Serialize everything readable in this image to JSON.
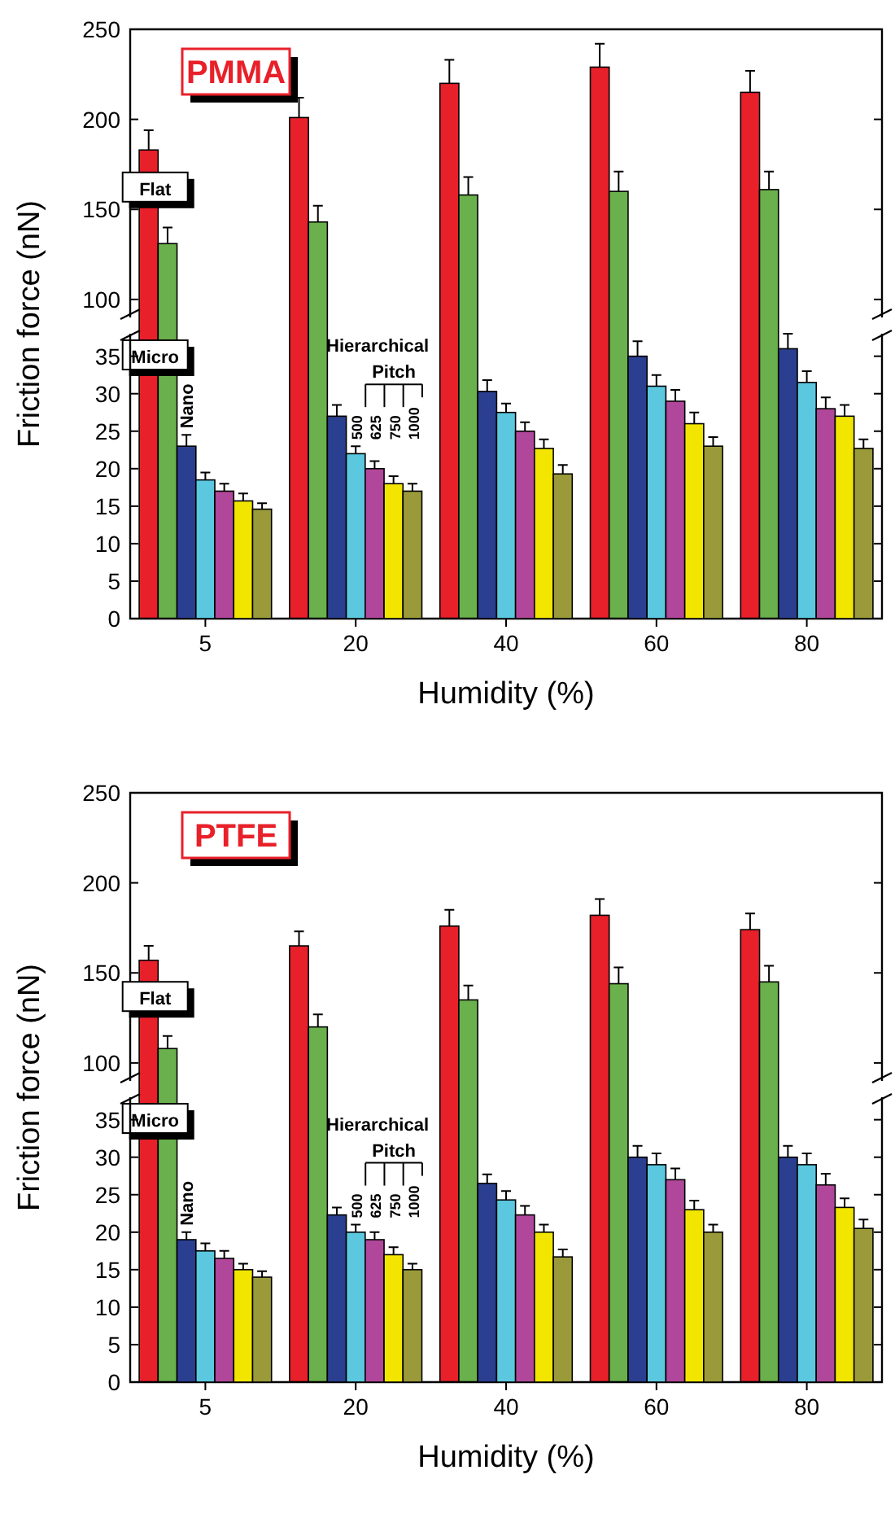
{
  "chart_data": [
    {
      "type": "bar",
      "title": "PMMA",
      "categories": [
        "5",
        "20",
        "40",
        "60",
        "80"
      ],
      "ylim": [
        90,
        250
      ],
      "yticks": [
        100,
        150,
        200,
        250
      ],
      "tick_labels": "y",
      "series": [
        {
          "name": "Flat",
          "color": "#e8202a",
          "values": [
            183,
            201,
            220,
            229,
            215
          ],
          "errors": [
            11,
            11,
            13,
            13,
            12
          ]
        },
        {
          "name": "Micro",
          "color": "#6ab04c",
          "values": [
            131,
            143,
            158,
            160,
            161
          ],
          "errors": [
            9,
            9,
            10,
            11,
            10
          ]
        }
      ]
    },
    {
      "type": "bar",
      "xlabel": "Humidity (%)",
      "ylabel": "Friction force (nN)",
      "categories": [
        "5",
        "20",
        "40",
        "60",
        "80"
      ],
      "ylim": [
        0,
        38
      ],
      "yticks": [
        0,
        5,
        10,
        15,
        20,
        25,
        30,
        35
      ],
      "annotations": [
        "Hierarchical",
        "Pitch"
      ],
      "legend": "top left",
      "series": [
        {
          "name": "Nano",
          "color": "#2a3f8f",
          "values": [
            23,
            27,
            30.3,
            35,
            36
          ],
          "errors": [
            1.5,
            1.5,
            1.5,
            2,
            2
          ]
        },
        {
          "name": "500",
          "color": "#5bc8e0",
          "values": [
            18.5,
            22,
            27.5,
            31,
            31.5
          ],
          "errors": [
            1,
            1,
            1.2,
            1.5,
            1.5
          ]
        },
        {
          "name": "625",
          "color": "#b0479a",
          "values": [
            17,
            20,
            25,
            29,
            28
          ],
          "errors": [
            1,
            1,
            1.2,
            1.5,
            1.5
          ]
        },
        {
          "name": "750",
          "color": "#f2e600",
          "values": [
            15.7,
            18,
            22.7,
            26,
            27
          ],
          "errors": [
            1,
            1,
            1.2,
            1.5,
            1.5
          ]
        },
        {
          "name": "1000",
          "color": "#9a9a3a",
          "values": [
            14.6,
            17,
            19.3,
            23,
            22.7
          ],
          "errors": [
            0.8,
            1,
            1.2,
            1.2,
            1.2
          ]
        }
      ]
    },
    {
      "type": "bar",
      "title": "PTFE",
      "categories": [
        "5",
        "20",
        "40",
        "60",
        "80"
      ],
      "ylim": [
        90,
        250
      ],
      "yticks": [
        100,
        150,
        200,
        250
      ],
      "tick_labels": "y",
      "series": [
        {
          "name": "Flat",
          "color": "#e8202a",
          "values": [
            157,
            165,
            176,
            182,
            174
          ],
          "errors": [
            8,
            8,
            9,
            9,
            9
          ]
        },
        {
          "name": "Micro",
          "color": "#6ab04c",
          "values": [
            108,
            120,
            135,
            144,
            145
          ],
          "errors": [
            7,
            7,
            8,
            9,
            9
          ]
        }
      ]
    },
    {
      "type": "bar",
      "xlabel": "Humidity (%)",
      "ylabel": "Friction force (nN)",
      "categories": [
        "5",
        "20",
        "40",
        "60",
        "80"
      ],
      "ylim": [
        0,
        38
      ],
      "yticks": [
        0,
        5,
        10,
        15,
        20,
        25,
        30,
        35
      ],
      "annotations": [
        "Hierarchical",
        "Pitch"
      ],
      "legend": "top left",
      "series": [
        {
          "name": "Nano",
          "color": "#2a3f8f",
          "values": [
            19,
            22.3,
            26.5,
            30,
            30
          ],
          "errors": [
            1,
            1,
            1.2,
            1.5,
            1.5
          ]
        },
        {
          "name": "500",
          "color": "#5bc8e0",
          "values": [
            17.5,
            20,
            24.3,
            29,
            29
          ],
          "errors": [
            1,
            1,
            1.2,
            1.5,
            1.5
          ]
        },
        {
          "name": "625",
          "color": "#b0479a",
          "values": [
            16.5,
            19,
            22.3,
            27,
            26.3
          ],
          "errors": [
            1,
            1,
            1.2,
            1.5,
            1.5
          ]
        },
        {
          "name": "750",
          "color": "#f2e600",
          "values": [
            15,
            17,
            20,
            23,
            23.3
          ],
          "errors": [
            0.8,
            1,
            1,
            1.2,
            1.2
          ]
        },
        {
          "name": "1000",
          "color": "#9a9a3a",
          "values": [
            14,
            15,
            16.7,
            20,
            20.5
          ],
          "errors": [
            0.8,
            0.8,
            1,
            1,
            1.2
          ]
        }
      ]
    }
  ]
}
